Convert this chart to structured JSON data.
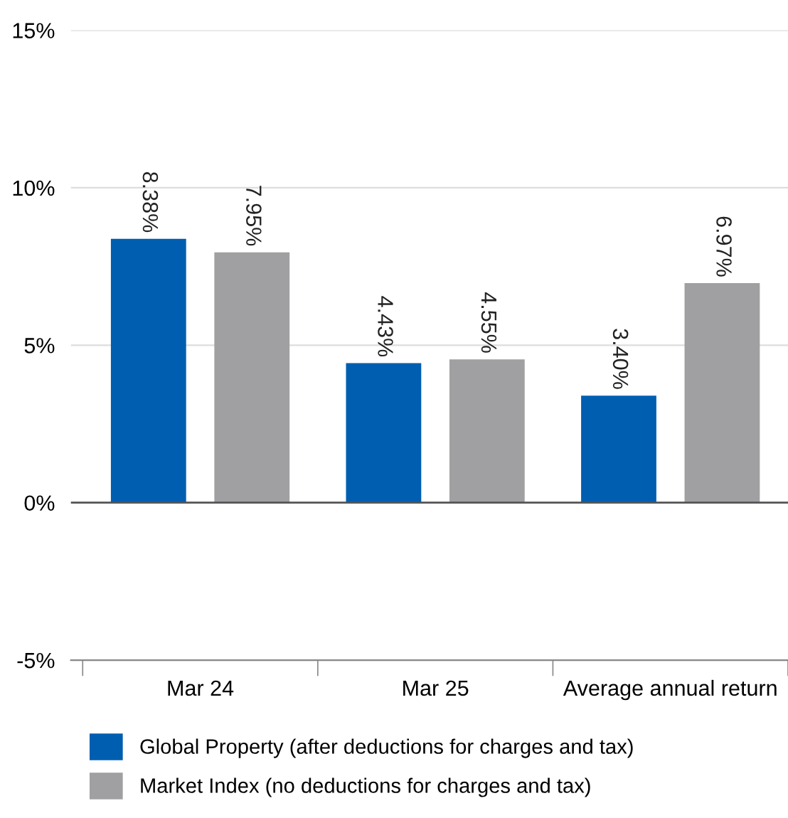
{
  "chart_data": {
    "type": "bar",
    "categories": [
      "Mar 24",
      "Mar 25",
      "Average annual return"
    ],
    "series": [
      {
        "name": "Global Property (after deductions for charges and tax)",
        "color": "#005eb0",
        "values": [
          8.38,
          4.43,
          3.4
        ],
        "value_labels": [
          "8.38%",
          "4.43%",
          "3.40%"
        ]
      },
      {
        "name": "Market Index (no deductions for charges and tax)",
        "color": "#a0a0a2",
        "values": [
          7.95,
          4.55,
          6.97
        ],
        "value_labels": [
          "7.95%",
          "4.55%",
          "6.97%"
        ]
      }
    ],
    "ylim": [
      -5,
      15
    ],
    "yticks": [
      {
        "value": -5,
        "label": "-5%"
      },
      {
        "value": 0,
        "label": "0%"
      },
      {
        "value": 5,
        "label": "5%"
      },
      {
        "value": 10,
        "label": "10%"
      },
      {
        "value": 15,
        "label": "15%"
      }
    ],
    "grid": "y",
    "legend": "bottom"
  }
}
